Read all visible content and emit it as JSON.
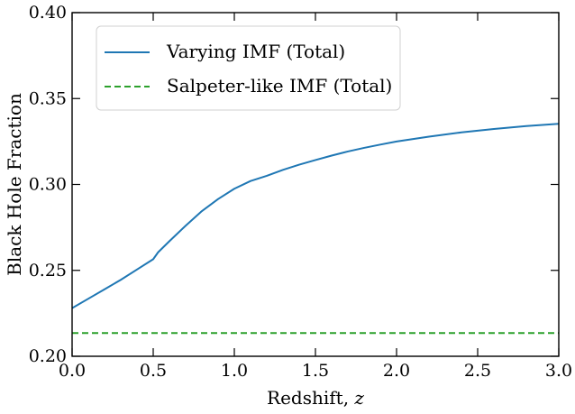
{
  "chart_data": {
    "type": "line",
    "xlabel": "Redshift, ",
    "xlabel_var": "z",
    "ylabel": "Black Hole Fraction",
    "xlim": [
      0.0,
      3.0
    ],
    "ylim": [
      0.2,
      0.4
    ],
    "xticks": [
      0.0,
      0.5,
      1.0,
      1.5,
      2.0,
      2.5,
      3.0
    ],
    "xtick_labels": [
      "0.0",
      "0.5",
      "1.0",
      "1.5",
      "2.0",
      "2.5",
      "3.0"
    ],
    "yticks": [
      0.2,
      0.25,
      0.3,
      0.35,
      0.4
    ],
    "ytick_labels": [
      "0.20",
      "0.25",
      "0.30",
      "0.35",
      "0.40"
    ],
    "grid": false,
    "legend_position": "top-left",
    "series": [
      {
        "name": "Varying IMF (Total)",
        "color": "#1f77b4",
        "style": "solid",
        "x": [
          0.0,
          0.1,
          0.2,
          0.3,
          0.4,
          0.5,
          0.53,
          0.6,
          0.7,
          0.8,
          0.9,
          1.0,
          1.1,
          1.2,
          1.3,
          1.4,
          1.5,
          1.6,
          1.7,
          1.8,
          1.9,
          2.0,
          2.2,
          2.4,
          2.6,
          2.8,
          3.0
        ],
        "y": [
          0.228,
          0.2335,
          0.239,
          0.2445,
          0.2505,
          0.2565,
          0.2605,
          0.267,
          0.276,
          0.2845,
          0.2915,
          0.2975,
          0.302,
          0.305,
          0.3085,
          0.3115,
          0.3142,
          0.3168,
          0.3192,
          0.3213,
          0.3232,
          0.325,
          0.3278,
          0.3303,
          0.3323,
          0.334,
          0.3353
        ]
      },
      {
        "name": "Salpeter-like IMF (Total)",
        "color": "#2ca02c",
        "style": "dashed",
        "x": [
          0.0,
          3.0
        ],
        "y": [
          0.2135,
          0.2135
        ]
      }
    ]
  }
}
